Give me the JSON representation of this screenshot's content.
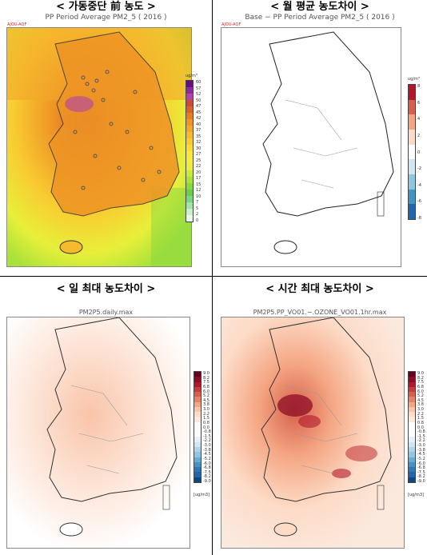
{
  "panels": [
    {
      "id": "top-left",
      "heading": "< 가동중단 前 농도 >",
      "map_title": "PP Period Average PM2_5 ( 2016 )",
      "logo": "AJOU-AQF",
      "unit": "ug/m³",
      "scale_min": 0,
      "scale_max": 60,
      "ticks": [
        "60",
        "57",
        "52",
        "50",
        "47",
        "45",
        "42",
        "40",
        "37",
        "35",
        "32",
        "30",
        "27",
        "25",
        "22",
        "20",
        "17",
        "15",
        "12",
        "10",
        "7",
        "5",
        "2",
        "0"
      ],
      "colors": [
        "#6a0d83",
        "#8a2ba0",
        "#b042a8",
        "#cc4a3a",
        "#d8642a",
        "#e57d25",
        "#ee9425",
        "#f3a72a",
        "#f6ba2e",
        "#f9cb31",
        "#fbda35",
        "#fde63a",
        "#f7ec3b",
        "#e8ef3a",
        "#c8ea3a",
        "#a8e23a",
        "#88d83f",
        "#6ccd4a",
        "#7ad682",
        "#a2e3a8",
        "#c8f0cb",
        "#e8faea"
      ]
    },
    {
      "id": "top-right",
      "heading": "< 월 평균 농도차이 >",
      "map_title": "Base − PP Period Average PM2_5 ( 2016 )",
      "logo": "AJOU-AQF",
      "unit": "ug/m³",
      "scale_min": -8,
      "scale_max": 8,
      "ticks": [
        "8",
        "6",
        "4",
        "2",
        "0",
        "-2",
        "-4",
        "-6",
        "-8"
      ],
      "colors": [
        "#b2182b",
        "#d6604d",
        "#f4a582",
        "#fddbc7",
        "#ffffff",
        "#d1e5f0",
        "#92c5de",
        "#4393c3",
        "#2166ac"
      ]
    },
    {
      "id": "bottom-left",
      "heading": "< 일 최대 농도차이 >",
      "map_title": "PM2P5.daily.max",
      "unit": "[ug/m3]",
      "ticks": [
        "9.0",
        "8.2",
        "7.5",
        "6.8",
        "6.0",
        "5.2",
        "4.5",
        "3.8",
        "3.0",
        "2.2",
        "1.5",
        "0.8",
        "0.0",
        "-0.8",
        "-1.5",
        "-2.2",
        "-3.0",
        "-3.8",
        "-4.5",
        "-5.2",
        "-6.0",
        "-6.8",
        "-7.5",
        "-8.2",
        "-9.0"
      ],
      "colors": [
        "#67001f",
        "#8e0c25",
        "#b2182b",
        "#c43c3c",
        "#d6604d",
        "#e58268",
        "#f4a582",
        "#f9c4a9",
        "#fddbc7",
        "#fbe9de",
        "#ffffff",
        "#ffffff",
        "#ffffff",
        "#e7f0f6",
        "#d1e5f0",
        "#b1d5e7",
        "#92c5de",
        "#6aacd0",
        "#4393c3",
        "#2f78b4",
        "#2166ac",
        "#114781"
      ]
    },
    {
      "id": "bottom-right",
      "heading": "< 시간 최대 농도차이 >",
      "map_title": "PM2P5.PP_VO01.−.OZONE_VO01.1hr.max",
      "unit": "[ug/m3]",
      "ticks": [
        "9.0",
        "8.2",
        "7.5",
        "6.8",
        "6.0",
        "5.2",
        "4.5",
        "3.8",
        "3.0",
        "2.2",
        "1.5",
        "0.8",
        "0.0",
        "-0.8",
        "-1.5",
        "-2.2",
        "-3.0",
        "-3.8",
        "-4.5",
        "-5.2",
        "-6.0",
        "-6.8",
        "-7.5",
        "-8.2",
        "-9.0"
      ],
      "colors": [
        "#67001f",
        "#8e0c25",
        "#b2182b",
        "#c43c3c",
        "#d6604d",
        "#e58268",
        "#f4a582",
        "#f9c4a9",
        "#fddbc7",
        "#fbe9de",
        "#ffffff",
        "#ffffff",
        "#ffffff",
        "#e7f0f6",
        "#d1e5f0",
        "#b1d5e7",
        "#92c5de",
        "#6aacd0",
        "#4393c3",
        "#2f78b4",
        "#2166ac",
        "#114781"
      ]
    }
  ]
}
